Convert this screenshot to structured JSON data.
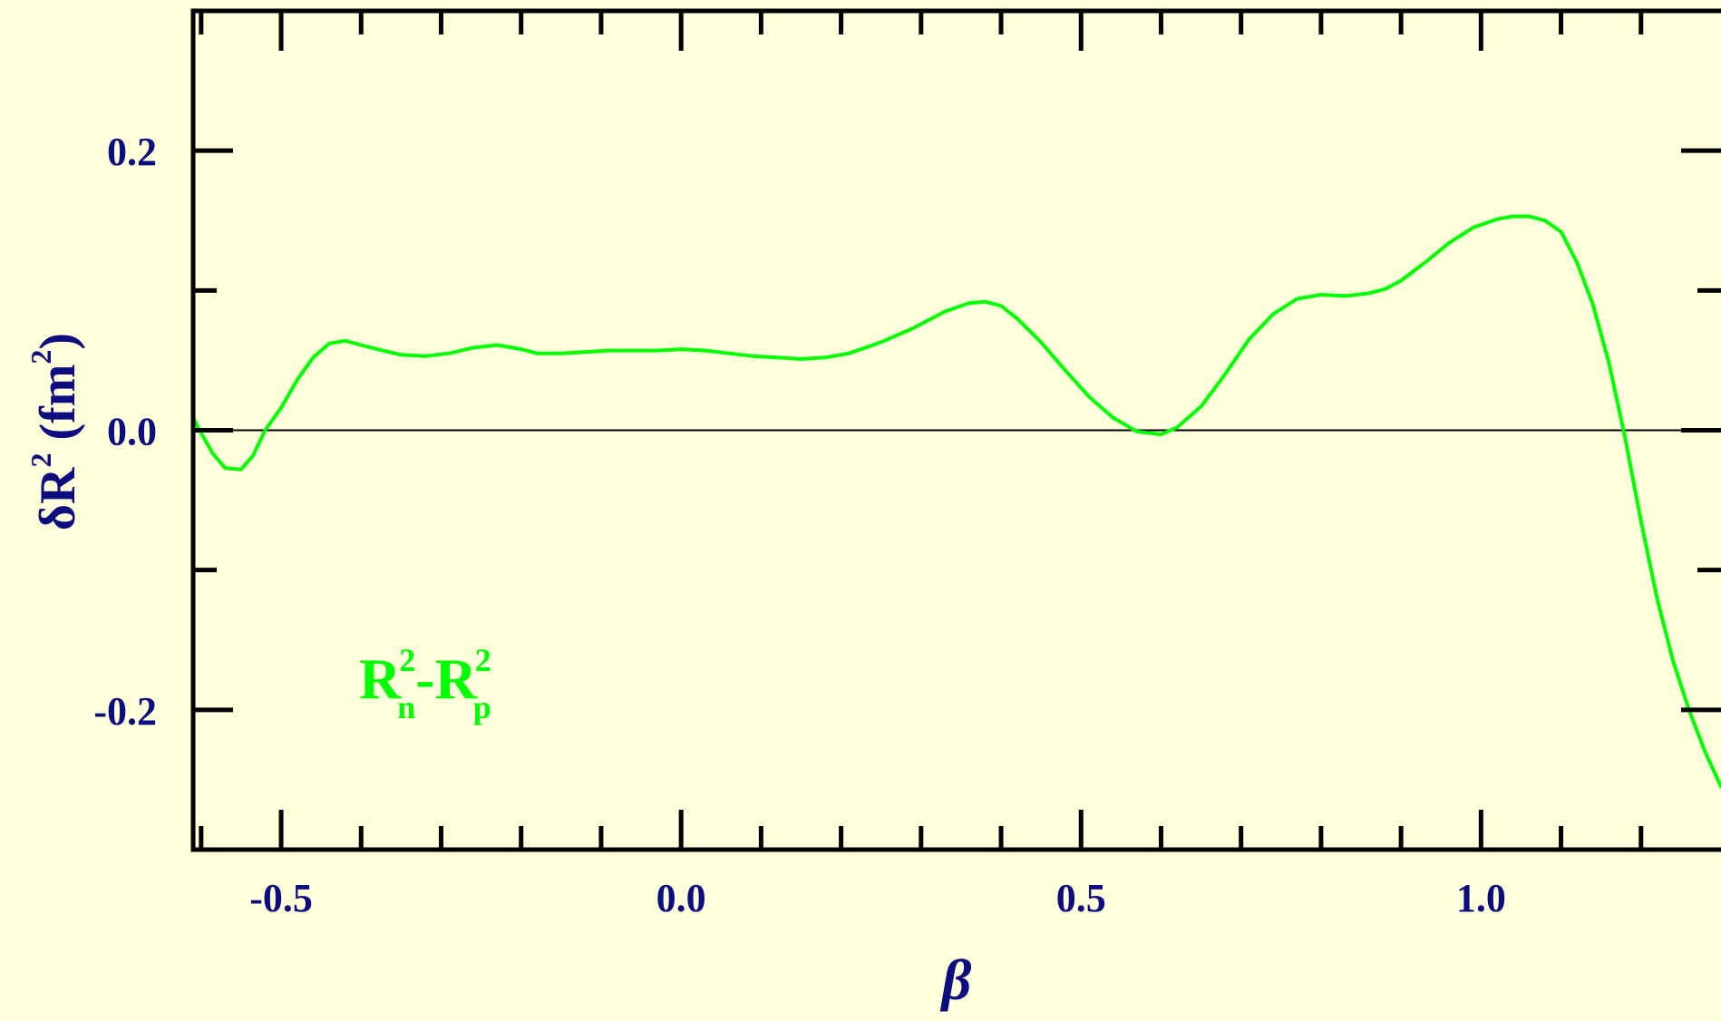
{
  "chart_data": {
    "type": "line",
    "xlabel": "β",
    "ylabel": {
      "prefix": "δR",
      "sup": "2",
      "unit_open": " (fm",
      "unit_sup": "2",
      "unit_close": ")"
    },
    "xlim": [
      -0.61,
      1.3
    ],
    "ylim": [
      -0.3,
      0.3
    ],
    "x_ticks": {
      "major": [
        -0.5,
        0.0,
        0.5,
        1.0
      ],
      "minor_step": 0.1
    },
    "y_ticks": {
      "major": [
        -0.2,
        0.0,
        0.2
      ],
      "minor_step": 0.1
    },
    "x_tick_labels": [
      "-0.5",
      "0.0",
      "0.5",
      "1.0"
    ],
    "y_tick_labels": [
      "-0.2",
      "0.0",
      "0.2"
    ],
    "reference_line": 0.0,
    "colors": {
      "line": "#00ff00",
      "axis": "#000000",
      "text": "#0d0d80",
      "background": "#ffffdc"
    },
    "annotation": {
      "base1": "R",
      "sup1": "2",
      "sub1": "n",
      "minus": "-",
      "base2": "R",
      "sup2": "2",
      "sub2": "p"
    },
    "series": [
      {
        "x": [
          -0.61,
          -0.6,
          -0.585,
          -0.57,
          -0.55,
          -0.535,
          -0.52,
          -0.5,
          -0.48,
          -0.46,
          -0.44,
          -0.42,
          -0.4,
          -0.38,
          -0.35,
          -0.32,
          -0.29,
          -0.26,
          -0.23,
          -0.2,
          -0.18,
          -0.15,
          -0.12,
          -0.09,
          -0.06,
          -0.03,
          0.0,
          0.03,
          0.06,
          0.09,
          0.12,
          0.15,
          0.18,
          0.21,
          0.25,
          0.29,
          0.33,
          0.36,
          0.38,
          0.4,
          0.42,
          0.45,
          0.48,
          0.51,
          0.54,
          0.57,
          0.6,
          0.62,
          0.65,
          0.68,
          0.71,
          0.74,
          0.77,
          0.8,
          0.83,
          0.86,
          0.88,
          0.9,
          0.93,
          0.96,
          0.99,
          1.02,
          1.04,
          1.06,
          1.08,
          1.1,
          1.12,
          1.14,
          1.16,
          1.18,
          1.2,
          1.22,
          1.24,
          1.26,
          1.28,
          1.3
        ],
        "y": [
          0.009,
          -0.002,
          -0.017,
          -0.027,
          -0.028,
          -0.018,
          0.0,
          0.016,
          0.036,
          0.052,
          0.062,
          0.064,
          0.061,
          0.058,
          0.054,
          0.053,
          0.055,
          0.059,
          0.061,
          0.058,
          0.055,
          0.055,
          0.056,
          0.057,
          0.057,
          0.057,
          0.058,
          0.057,
          0.055,
          0.053,
          0.052,
          0.051,
          0.052,
          0.055,
          0.063,
          0.073,
          0.085,
          0.091,
          0.092,
          0.089,
          0.08,
          0.063,
          0.043,
          0.024,
          0.009,
          -0.001,
          -0.003,
          0.002,
          0.017,
          0.04,
          0.065,
          0.083,
          0.094,
          0.097,
          0.096,
          0.098,
          0.101,
          0.107,
          0.12,
          0.134,
          0.145,
          0.151,
          0.153,
          0.153,
          0.15,
          0.142,
          0.12,
          0.09,
          0.048,
          -0.005,
          -0.065,
          -0.12,
          -0.165,
          -0.2,
          -0.23,
          -0.255
        ]
      }
    ]
  }
}
